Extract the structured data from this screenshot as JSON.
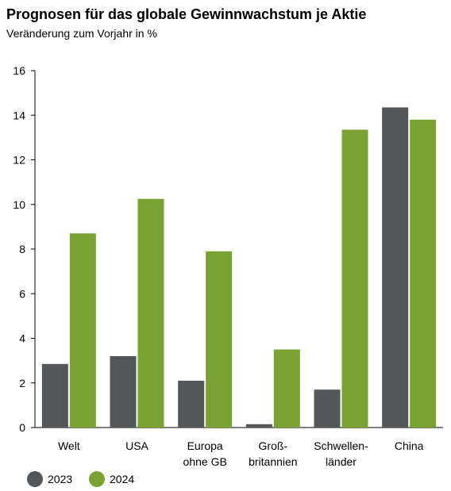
{
  "chart_data": {
    "type": "bar",
    "title": "Prognosen für das globale Gewinnwachstum je Aktie",
    "subtitle": "Veränderung zum Vorjahr in %",
    "xlabel": "",
    "ylabel": "",
    "ylim": [
      0,
      16
    ],
    "yticks": [
      "0",
      "2",
      "4",
      "6",
      "8",
      "10",
      "12",
      "14",
      "16"
    ],
    "categories": [
      [
        "Welt"
      ],
      [
        "USA"
      ],
      [
        "Europa",
        "ohne GB"
      ],
      [
        "Groß-",
        "britannien"
      ],
      [
        "Schwellen-",
        "länder"
      ],
      [
        "China"
      ]
    ],
    "series": [
      {
        "name": "2023",
        "color": "#54575a",
        "values": [
          2.85,
          3.2,
          2.1,
          0.15,
          1.7,
          14.35
        ]
      },
      {
        "name": "2024",
        "color": "#7aa233",
        "values": [
          8.7,
          10.25,
          7.9,
          3.5,
          13.35,
          13.8
        ]
      }
    ],
    "grid": false,
    "legend_position": "bottom-left"
  }
}
